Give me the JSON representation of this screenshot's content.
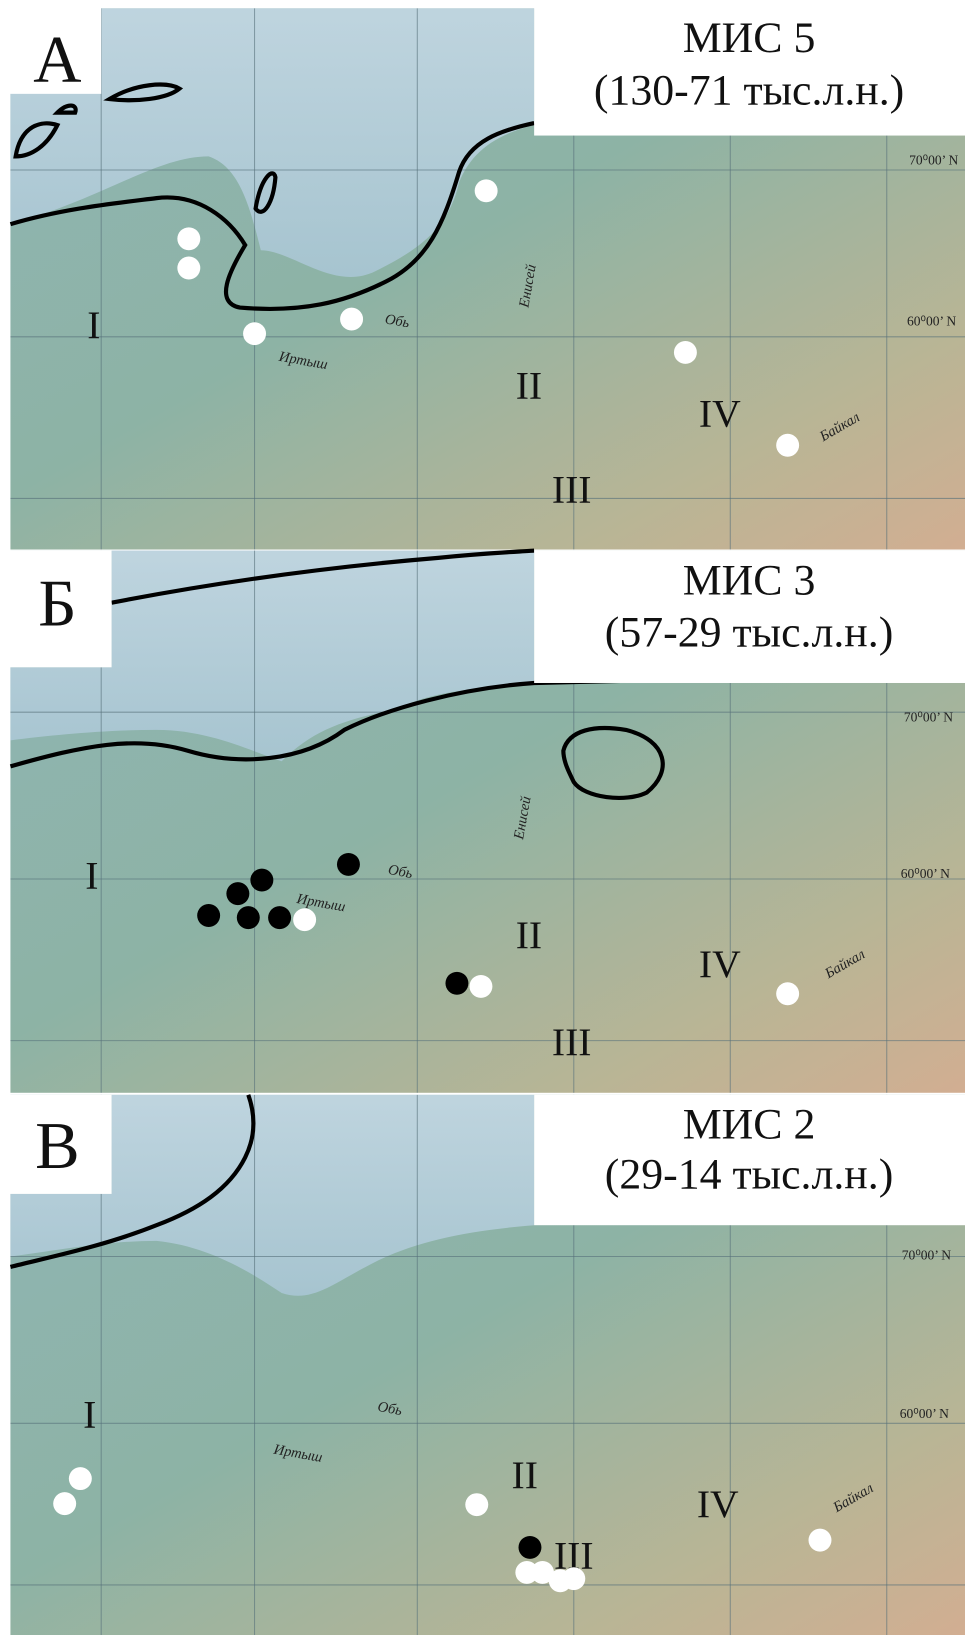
{
  "panels": [
    {
      "letter": "А",
      "title": "МИС 5",
      "period": "(130-71 тыс.л.н.)",
      "latitudes": [
        "70⁰00’ N",
        "60⁰00’ N"
      ],
      "regions": [
        "I",
        "II",
        "III",
        "IV"
      ],
      "rivers": [
        "Иртыш",
        "Обь",
        "Енисей",
        "Байкал"
      ]
    },
    {
      "letter": "Б",
      "title": "МИС 3",
      "period": "(57-29 тыс.л.н.)",
      "latitudes": [
        "70⁰00’ N",
        "60⁰00’ N"
      ],
      "regions": [
        "I",
        "II",
        "III",
        "IV"
      ],
      "rivers": [
        "Обь",
        "Иртыш",
        "Енисей",
        "Байкал"
      ]
    },
    {
      "letter": "В",
      "title": "МИС 2",
      "period": "(29-14 тыс.л.н.)",
      "latitudes": [
        "70⁰00’ N",
        "60⁰00’ N"
      ],
      "regions": [
        "I",
        "II",
        "III",
        "IV"
      ],
      "rivers": [
        "Обь",
        "Иртыш",
        "Байкал"
      ]
    }
  ]
}
